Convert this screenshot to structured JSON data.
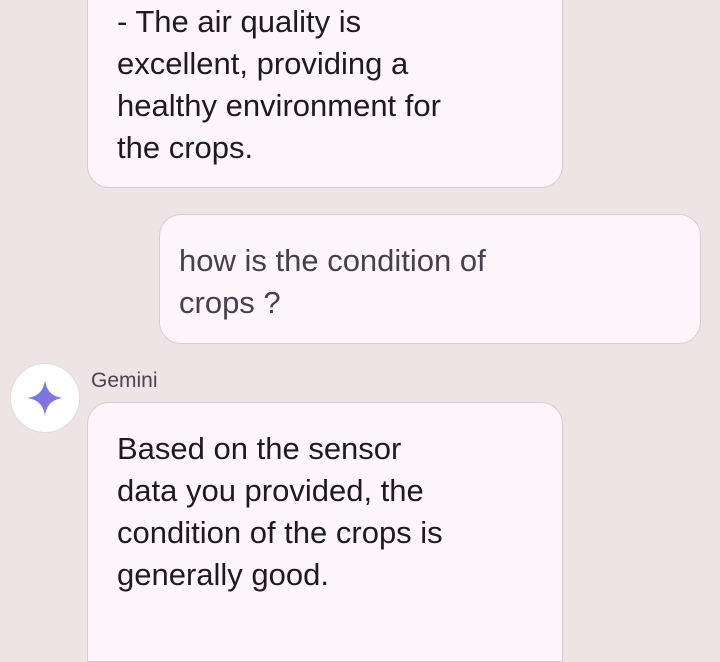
{
  "messages": [
    {
      "role": "assistant",
      "lines": [
        "- The air quality is",
        "excellent, providing a",
        "healthy environment for",
        "the crops."
      ]
    },
    {
      "role": "user",
      "lines": [
        "how is the condition of",
        "crops ?"
      ]
    },
    {
      "role": "assistant",
      "sender": "Gemini",
      "avatar_icon": "gemini-sparkle-icon",
      "lines": [
        "Based on the sensor",
        "data you provided, the",
        "condition of the crops is",
        "generally good."
      ]
    }
  ],
  "colors": {
    "background": "#ece4e5",
    "bubble_fill": "#fcf6fb",
    "bubble_border": "#d6cdd3",
    "text": "#1d1b20",
    "sparkle_gradient": [
      "#4f8ef7",
      "#8a6fe0",
      "#5aa9f2"
    ]
  }
}
